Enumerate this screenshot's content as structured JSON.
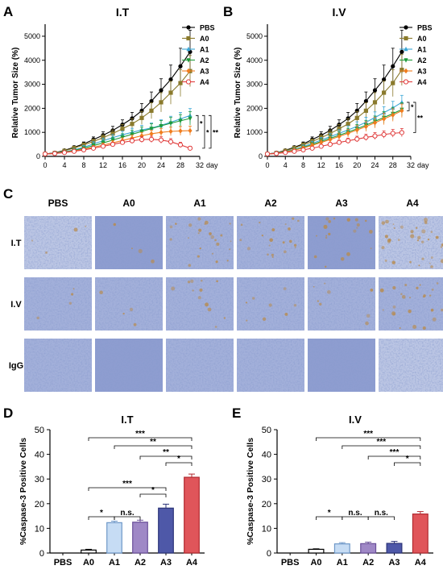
{
  "panel_labels": [
    "A",
    "B",
    "C",
    "D",
    "E"
  ],
  "colors": {
    "PBS": "#000000",
    "A0": "#8a7a2c",
    "A1": "#3aa7d6",
    "A2": "#1e9a3a",
    "A3": "#f07d1e",
    "A4": "#e03c3c",
    "bar_A1": "#c6dcf4",
    "bar_A2": "#9f88c6",
    "bar_A3": "#4e58a8",
    "bar_A4": "#e0555a",
    "ihc_base": "#aab6dc",
    "ihc_dark": "#6f7fc0",
    "ihc_brown": "#b88a4a"
  },
  "chart_data": [
    {
      "type": "line",
      "title": "I.T",
      "ylabel": "Relative Tumor Size (%)",
      "xlabel": "day",
      "x": [
        0,
        2,
        4,
        6,
        8,
        10,
        12,
        14,
        16,
        18,
        20,
        22,
        24,
        26,
        28,
        30
      ],
      "xticks": [
        0,
        4,
        8,
        12,
        16,
        20,
        24,
        28,
        32
      ],
      "yticks": [
        0,
        1000,
        2000,
        3000,
        4000,
        5000
      ],
      "xlim": [
        0,
        32
      ],
      "ylim": [
        0,
        5300
      ],
      "series": [
        {
          "name": "PBS",
          "marker": "circle",
          "values": [
            100,
            150,
            250,
            380,
            520,
            700,
            880,
            1080,
            1320,
            1580,
            1900,
            2300,
            2750,
            3200,
            3750,
            4350
          ],
          "err": [
            20,
            30,
            40,
            60,
            80,
            110,
            140,
            170,
            200,
            250,
            300,
            380,
            480,
            600,
            750,
            900
          ]
        },
        {
          "name": "A0",
          "marker": "square",
          "values": [
            100,
            140,
            230,
            350,
            480,
            620,
            780,
            950,
            1150,
            1350,
            1600,
            1900,
            2250,
            2650,
            3050,
            3550
          ],
          "err": [
            20,
            30,
            40,
            60,
            80,
            100,
            120,
            150,
            180,
            220,
            270,
            330,
            400,
            480,
            560,
            650
          ]
        },
        {
          "name": "A1",
          "marker": "triangle-up",
          "values": [
            100,
            130,
            190,
            270,
            380,
            520,
            650,
            780,
            900,
            1000,
            1100,
            1180,
            1290,
            1420,
            1560,
            1700
          ],
          "err": [
            15,
            25,
            35,
            50,
            70,
            90,
            110,
            130,
            150,
            170,
            190,
            210,
            230,
            250,
            270,
            290
          ]
        },
        {
          "name": "A2",
          "marker": "triangle-down",
          "values": [
            100,
            125,
            180,
            250,
            340,
            450,
            560,
            680,
            800,
            920,
            1040,
            1160,
            1270,
            1380,
            1480,
            1580
          ],
          "err": [
            15,
            25,
            30,
            45,
            60,
            80,
            100,
            120,
            140,
            160,
            180,
            200,
            220,
            240,
            260,
            280
          ]
        },
        {
          "name": "A3",
          "marker": "diamond",
          "values": [
            100,
            120,
            170,
            230,
            300,
            380,
            470,
            560,
            660,
            760,
            860,
            940,
            1000,
            1040,
            1060,
            1070
          ],
          "err": [
            15,
            20,
            30,
            40,
            50,
            65,
            80,
            95,
            110,
            125,
            140,
            155,
            165,
            175,
            185,
            190
          ]
        },
        {
          "name": "A4",
          "marker": "circle-open",
          "values": [
            100,
            120,
            160,
            210,
            270,
            340,
            420,
            500,
            580,
            650,
            700,
            710,
            680,
            610,
            480,
            340
          ],
          "err": [
            15,
            20,
            25,
            35,
            45,
            55,
            65,
            80,
            95,
            110,
            120,
            130,
            135,
            130,
            110,
            80
          ]
        }
      ],
      "sig": [
        "*",
        "*",
        "**"
      ]
    },
    {
      "type": "line",
      "title": "I.V",
      "ylabel": "Relative Tumor Size (%)",
      "xlabel": "day",
      "x": [
        0,
        2,
        4,
        6,
        8,
        10,
        12,
        14,
        16,
        18,
        20,
        22,
        24,
        26,
        28,
        30
      ],
      "xticks": [
        0,
        4,
        8,
        12,
        16,
        20,
        24,
        28,
        32
      ],
      "yticks": [
        0,
        1000,
        2000,
        3000,
        4000,
        5000
      ],
      "xlim": [
        0,
        32
      ],
      "ylim": [
        0,
        5300
      ],
      "series": [
        {
          "name": "PBS",
          "marker": "circle",
          "values": [
            100,
            150,
            250,
            380,
            520,
            700,
            880,
            1080,
            1320,
            1580,
            1900,
            2300,
            2750,
            3200,
            3750,
            4350
          ],
          "err": [
            20,
            30,
            40,
            60,
            80,
            110,
            140,
            170,
            200,
            250,
            300,
            380,
            480,
            600,
            750,
            900
          ]
        },
        {
          "name": "A0",
          "marker": "square",
          "values": [
            100,
            140,
            230,
            350,
            480,
            620,
            780,
            950,
            1150,
            1350,
            1600,
            1900,
            2250,
            2650,
            3050,
            3600
          ],
          "err": [
            20,
            30,
            40,
            60,
            80,
            100,
            120,
            150,
            180,
            220,
            270,
            330,
            400,
            480,
            560,
            650
          ]
        },
        {
          "name": "A1",
          "marker": "triangle-up",
          "values": [
            100,
            135,
            200,
            290,
            400,
            540,
            680,
            820,
            960,
            1100,
            1250,
            1420,
            1620,
            1820,
            2020,
            2250
          ],
          "err": [
            15,
            25,
            35,
            50,
            70,
            90,
            110,
            130,
            150,
            170,
            190,
            210,
            230,
            250,
            270,
            290
          ]
        },
        {
          "name": "A2",
          "marker": "triangle-down",
          "values": [
            100,
            130,
            190,
            270,
            370,
            490,
            620,
            750,
            880,
            1010,
            1150,
            1300,
            1460,
            1620,
            1780,
            1950
          ],
          "err": [
            15,
            25,
            30,
            45,
            60,
            80,
            100,
            120,
            140,
            160,
            180,
            200,
            220,
            240,
            260,
            280
          ]
        },
        {
          "name": "A3",
          "marker": "diamond",
          "values": [
            100,
            128,
            185,
            260,
            350,
            460,
            580,
            700,
            830,
            960,
            1100,
            1240,
            1400,
            1560,
            1720,
            1900
          ],
          "err": [
            15,
            25,
            30,
            45,
            60,
            80,
            100,
            120,
            140,
            160,
            180,
            200,
            220,
            240,
            260,
            280
          ]
        },
        {
          "name": "A4",
          "marker": "circle-open",
          "values": [
            100,
            120,
            160,
            210,
            270,
            340,
            420,
            500,
            580,
            650,
            720,
            790,
            850,
            910,
            960,
            990
          ],
          "err": [
            15,
            20,
            25,
            35,
            45,
            55,
            65,
            80,
            95,
            110,
            120,
            130,
            140,
            150,
            160,
            170
          ]
        }
      ],
      "sig": [
        "*",
        "**"
      ]
    },
    {
      "type": "bar",
      "title": "I.T",
      "ylabel": "%Caspase-3 Positive Cells",
      "categories": [
        "PBS",
        "A0",
        "A1",
        "A2",
        "A3",
        "A4"
      ],
      "values": [
        0,
        1.2,
        12.3,
        12.5,
        18.2,
        30.7
      ],
      "err": [
        0,
        0.3,
        0.6,
        0.8,
        1.6,
        1.3
      ],
      "yticks": [
        0,
        10,
        20,
        30,
        40,
        50
      ],
      "ylim": [
        0,
        50
      ],
      "comparisons": [
        {
          "from": "A0",
          "to": "A1",
          "label": "*"
        },
        {
          "from": "A1",
          "to": "A2",
          "label": "n.s."
        },
        {
          "from": "A2",
          "to": "A3",
          "label": "*"
        },
        {
          "from": "A0",
          "to": "A3",
          "label": "***"
        },
        {
          "from": "A3",
          "to": "A4",
          "label": "*"
        },
        {
          "from": "A2",
          "to": "A4",
          "label": "**"
        },
        {
          "from": "A1",
          "to": "A4",
          "label": "**"
        },
        {
          "from": "A0",
          "to": "A4",
          "label": "***"
        }
      ]
    },
    {
      "type": "bar",
      "title": "I.V",
      "ylabel": "%Caspase-3 Positive Cells",
      "categories": [
        "PBS",
        "A0",
        "A1",
        "A2",
        "A3",
        "A4"
      ],
      "values": [
        0,
        1.5,
        3.7,
        3.8,
        3.9,
        15.8
      ],
      "err": [
        0,
        0.2,
        0.5,
        0.6,
        0.8,
        1.0
      ],
      "yticks": [
        0,
        10,
        20,
        30,
        40,
        50
      ],
      "ylim": [
        0,
        50
      ],
      "comparisons": [
        {
          "from": "A0",
          "to": "A1",
          "label": "*"
        },
        {
          "from": "A1",
          "to": "A2",
          "label": "n.s."
        },
        {
          "from": "A2",
          "to": "A3",
          "label": "n.s."
        },
        {
          "from": "A3",
          "to": "A4",
          "label": "*"
        },
        {
          "from": "A2",
          "to": "A4",
          "label": "***"
        },
        {
          "from": "A1",
          "to": "A4",
          "label": "***"
        },
        {
          "from": "A0",
          "to": "A4",
          "label": "***"
        }
      ]
    }
  ],
  "micrograph_grid": {
    "columns": [
      "PBS",
      "A0",
      "A1",
      "A2",
      "A3",
      "A4"
    ],
    "rows": [
      "I.T",
      "I.V",
      "IgG"
    ],
    "stain_level": [
      [
        0.1,
        0.1,
        0.6,
        0.5,
        0.5,
        0.9
      ],
      [
        0.1,
        0.1,
        0.3,
        0.2,
        0.2,
        0.6
      ],
      [
        0.0,
        0.0,
        0.0,
        0.0,
        0.0,
        0.0
      ]
    ],
    "tone": [
      [
        0.3,
        0.6,
        0.5,
        0.4,
        0.6,
        0.3
      ],
      [
        0.4,
        0.5,
        0.5,
        0.4,
        0.5,
        0.4
      ],
      [
        0.4,
        0.6,
        0.5,
        0.5,
        0.6,
        0.2
      ]
    ]
  }
}
